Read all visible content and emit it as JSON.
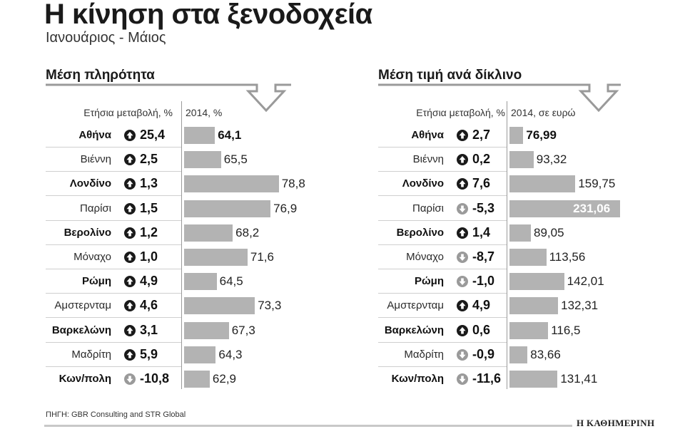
{
  "title": "Η κίνηση στα ξενοδοχεία",
  "subtitle": "Ιανουάριος - Μάιος",
  "source": "ΠΗΓΗ: GBR Consulting and STR Global",
  "brand": "Η ΚΑΘΗΜΕΡΙΝΗ",
  "colors": {
    "bar": "#b3b3b3",
    "text": "#1a1a1a",
    "rule": "#9a9a9a"
  },
  "chart_data": [
    {
      "type": "bar",
      "title": "Μέση πληρότητα",
      "change_header": "Ετήσια μεταβολή, %",
      "value_header": "2014, %",
      "categories": [
        "Αθήνα",
        "Βιέννη",
        "Λονδίνο",
        "Παρίσι",
        "Βερολίνο",
        "Μόναχο",
        "Ρώμη",
        "Αμστερνταμ",
        "Βαρκελώνη",
        "Μαδρίτη",
        "Κων/πολη"
      ],
      "bold_categories": [
        "Αθήνα",
        "Λονδίνο",
        "Βερολίνο",
        "Ρώμη",
        "Βαρκελώνη",
        "Κων/πολη"
      ],
      "changes": [
        "25,4",
        "2,5",
        "1,3",
        "1,5",
        "1,2",
        "1,0",
        "4,9",
        "4,6",
        "3,1",
        "5,9",
        "-10,8"
      ],
      "change_values": [
        25.4,
        2.5,
        1.3,
        1.5,
        1.2,
        1.0,
        4.9,
        4.6,
        3.1,
        5.9,
        -10.8
      ],
      "value_labels": [
        "64,1",
        "65,5",
        "78,8",
        "76,9",
        "68,2",
        "71,6",
        "64,5",
        "73,3",
        "67,3",
        "64,3",
        "62,9"
      ],
      "values": [
        64.1,
        65.5,
        78.8,
        76.9,
        68.2,
        71.6,
        64.5,
        73.3,
        67.3,
        64.3,
        62.9
      ],
      "bar_baseline": 57,
      "bar_max": 80
    },
    {
      "type": "bar",
      "title": "Μέση τιμή ανά δίκλινο",
      "change_header": "Ετήσια μεταβολή, %",
      "value_header": "2014, σε ευρώ",
      "categories": [
        "Αθήνα",
        "Βιέννη",
        "Λονδίνο",
        "Παρίσι",
        "Βερολίνο",
        "Μόναχο",
        "Ρώμη",
        "Αμστερνταμ",
        "Βαρκελώνη",
        "Μαδρίτη",
        "Κων/πολη"
      ],
      "bold_categories": [
        "Αθήνα",
        "Λονδίνο",
        "Βερολίνο",
        "Ρώμη",
        "Βαρκελώνη",
        "Κων/πολη"
      ],
      "changes": [
        "2,7",
        "0,2",
        "7,6",
        "-5,3",
        "1,4",
        "-8,7",
        "-1,0",
        "4,9",
        "0,6",
        "-0,9",
        "-11,6"
      ],
      "change_values": [
        2.7,
        0.2,
        7.6,
        -5.3,
        1.4,
        -8.7,
        -1.0,
        4.9,
        0.6,
        -0.9,
        -11.6
      ],
      "value_labels": [
        "76,99",
        "93,32",
        "159,75",
        "231,06",
        "89,05",
        "113,56",
        "142,01",
        "132,31",
        "116,5",
        "83,66",
        "131,41"
      ],
      "values": [
        76.99,
        93.32,
        159.75,
        231.06,
        89.05,
        113.56,
        142.01,
        132.31,
        116.5,
        83.66,
        131.41
      ],
      "bar_baseline": 55,
      "bar_max": 232
    }
  ]
}
